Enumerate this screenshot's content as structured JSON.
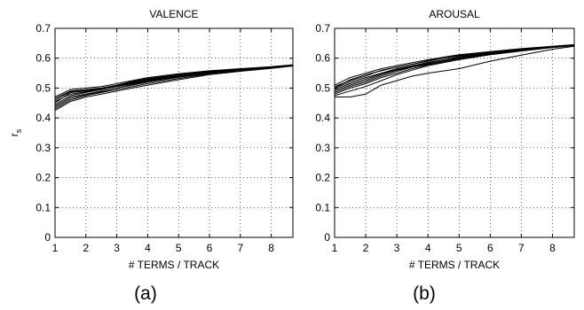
{
  "chart_data": [
    {
      "type": "line",
      "title": "VALENCE",
      "xlabel": "# TERMS / TRACK",
      "ylabel": "r",
      "ylabel_sub": "s",
      "caption": "(a)",
      "xlim": [
        1,
        8.7
      ],
      "ylim": [
        0,
        0.7
      ],
      "xticks": [
        1,
        2,
        3,
        4,
        5,
        6,
        7,
        8
      ],
      "yticks": [
        0,
        0.1,
        0.2,
        0.3,
        0.4,
        0.5,
        0.6,
        0.7
      ],
      "xtick_labels": [
        "1",
        "2",
        "3",
        "4",
        "5",
        "6",
        "7",
        "8"
      ],
      "ytick_labels": [
        "0",
        "0.1",
        "0.2",
        "0.3",
        "0.4",
        "0.5",
        "0.6",
        "0.7"
      ],
      "grid": true,
      "line_color": "#000000",
      "x": [
        1,
        1.5,
        2,
        2.5,
        3,
        3.5,
        4,
        5,
        6,
        7,
        8,
        8.7
      ],
      "series": [
        {
          "values": [
            0.465,
            0.49,
            0.495,
            0.5,
            0.51,
            0.52,
            0.53,
            0.545,
            0.555,
            0.56,
            0.57,
            0.577
          ]
        },
        {
          "values": [
            0.45,
            0.485,
            0.49,
            0.495,
            0.505,
            0.515,
            0.525,
            0.54,
            0.552,
            0.562,
            0.57,
            0.576
          ]
        },
        {
          "values": [
            0.44,
            0.47,
            0.48,
            0.49,
            0.5,
            0.512,
            0.522,
            0.538,
            0.55,
            0.56,
            0.568,
            0.575
          ]
        },
        {
          "values": [
            0.43,
            0.46,
            0.475,
            0.485,
            0.495,
            0.505,
            0.515,
            0.532,
            0.548,
            0.558,
            0.567,
            0.575
          ]
        },
        {
          "values": [
            0.425,
            0.455,
            0.47,
            0.48,
            0.49,
            0.5,
            0.51,
            0.528,
            0.545,
            0.556,
            0.566,
            0.574
          ]
        },
        {
          "values": [
            0.47,
            0.495,
            0.5,
            0.505,
            0.515,
            0.525,
            0.535,
            0.548,
            0.558,
            0.565,
            0.572,
            0.578
          ]
        },
        {
          "values": [
            0.455,
            0.48,
            0.487,
            0.495,
            0.508,
            0.518,
            0.528,
            0.542,
            0.553,
            0.562,
            0.57,
            0.576
          ]
        },
        {
          "values": [
            0.445,
            0.475,
            0.485,
            0.495,
            0.51,
            0.522,
            0.532,
            0.545,
            0.556,
            0.563,
            0.571,
            0.577
          ]
        },
        {
          "values": [
            0.435,
            0.465,
            0.478,
            0.488,
            0.5,
            0.51,
            0.52,
            0.536,
            0.55,
            0.559,
            0.568,
            0.575
          ]
        },
        {
          "values": [
            0.46,
            0.488,
            0.492,
            0.498,
            0.506,
            0.516,
            0.526,
            0.54,
            0.551,
            0.561,
            0.569,
            0.576
          ]
        }
      ]
    },
    {
      "type": "line",
      "title": "AROUSAL",
      "xlabel": "# TERMS / TRACK",
      "ylabel": "",
      "caption": "(b)",
      "xlim": [
        1,
        8.7
      ],
      "ylim": [
        0,
        0.7
      ],
      "xticks": [
        1,
        2,
        3,
        4,
        5,
        6,
        7,
        8
      ],
      "yticks": [
        0,
        0.1,
        0.2,
        0.3,
        0.4,
        0.5,
        0.6,
        0.7
      ],
      "xtick_labels": [
        "1",
        "2",
        "3",
        "4",
        "5",
        "6",
        "7",
        "8"
      ],
      "ytick_labels": [
        "0",
        "0.1",
        "0.2",
        "0.3",
        "0.4",
        "0.5",
        "0.6",
        "0.7"
      ],
      "grid": true,
      "line_color": "#000000",
      "x": [
        1,
        1.5,
        2,
        2.5,
        3,
        3.5,
        4,
        5,
        6,
        7,
        8,
        8.7
      ],
      "series": [
        {
          "values": [
            0.505,
            0.525,
            0.54,
            0.56,
            0.57,
            0.58,
            0.59,
            0.61,
            0.62,
            0.63,
            0.64,
            0.645
          ]
        },
        {
          "values": [
            0.5,
            0.52,
            0.535,
            0.55,
            0.565,
            0.575,
            0.585,
            0.605,
            0.618,
            0.628,
            0.638,
            0.644
          ]
        },
        {
          "values": [
            0.49,
            0.51,
            0.525,
            0.545,
            0.56,
            0.572,
            0.582,
            0.6,
            0.615,
            0.626,
            0.637,
            0.643
          ]
        },
        {
          "values": [
            0.48,
            0.5,
            0.515,
            0.535,
            0.55,
            0.565,
            0.578,
            0.598,
            0.612,
            0.625,
            0.636,
            0.642
          ]
        },
        {
          "values": [
            0.47,
            0.47,
            0.48,
            0.51,
            0.525,
            0.54,
            0.55,
            0.565,
            0.59,
            0.61,
            0.63,
            0.64
          ]
        },
        {
          "values": [
            0.51,
            0.535,
            0.55,
            0.565,
            0.575,
            0.585,
            0.595,
            0.612,
            0.622,
            0.632,
            0.64,
            0.645
          ]
        },
        {
          "values": [
            0.495,
            0.515,
            0.53,
            0.548,
            0.562,
            0.574,
            0.586,
            0.603,
            0.617,
            0.627,
            0.638,
            0.644
          ]
        },
        {
          "values": [
            0.485,
            0.505,
            0.52,
            0.54,
            0.556,
            0.57,
            0.58,
            0.6,
            0.614,
            0.626,
            0.637,
            0.643
          ]
        },
        {
          "values": [
            0.5,
            0.528,
            0.545,
            0.558,
            0.57,
            0.58,
            0.592,
            0.608,
            0.62,
            0.63,
            0.639,
            0.645
          ]
        },
        {
          "values": [
            0.475,
            0.49,
            0.505,
            0.525,
            0.545,
            0.56,
            0.575,
            0.595,
            0.612,
            0.624,
            0.636,
            0.642
          ]
        }
      ]
    }
  ]
}
